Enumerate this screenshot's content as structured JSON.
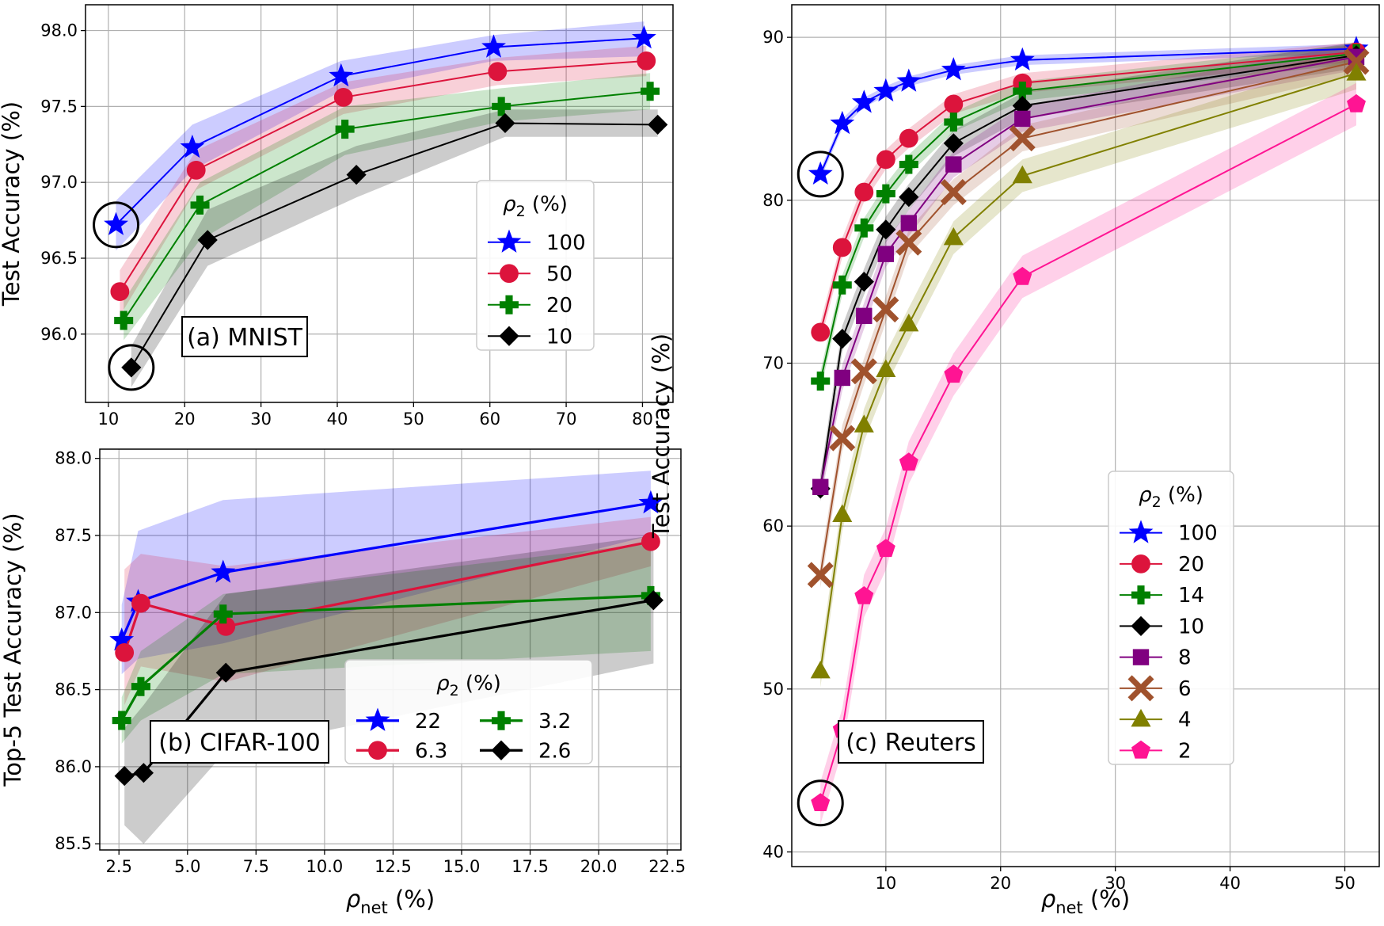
{
  "chart_data": [
    {
      "type": "line",
      "panel": "a",
      "annotation": "(a) MNIST",
      "xlabel": "ρnet (%)",
      "ylabel": "Test Accuracy (%)",
      "xlim": [
        7,
        84
      ],
      "ylim": [
        95.55,
        98.17
      ],
      "xticks": [
        10,
        20,
        30,
        40,
        50,
        60,
        70,
        80
      ],
      "yticks": [
        96.0,
        96.5,
        97.0,
        97.5,
        98.0
      ],
      "ytick_decimals": 1,
      "grid": true,
      "legend_title": "ρ2 (%)",
      "legend_placement": "bottom-right",
      "legend_columns": 1,
      "series": [
        {
          "name": "100",
          "color": "#0000ff",
          "marker": "star",
          "x": [
            11,
            21,
            40.5,
            60.5,
            80.2
          ],
          "y": [
            96.72,
            97.23,
            97.7,
            97.89,
            97.95
          ],
          "lower": [
            96.55,
            97.08,
            97.6,
            97.8,
            97.83
          ],
          "upper": [
            96.88,
            97.38,
            97.8,
            97.97,
            98.06
          ]
        },
        {
          "name": "50",
          "color": "#dc143c",
          "marker": "circle",
          "x": [
            11.5,
            21.5,
            40.8,
            61,
            80.5
          ],
          "y": [
            96.28,
            97.08,
            97.56,
            97.73,
            97.8
          ],
          "lower": [
            96.12,
            96.95,
            97.45,
            97.64,
            97.7
          ],
          "upper": [
            96.42,
            97.21,
            97.66,
            97.82,
            97.9
          ]
        },
        {
          "name": "20",
          "color": "#008000",
          "marker": "plus",
          "x": [
            12,
            22,
            41,
            61.5,
            81
          ],
          "y": [
            96.09,
            96.85,
            97.35,
            97.5,
            97.6
          ],
          "lower": [
            95.96,
            96.62,
            97.18,
            97.4,
            97.48
          ],
          "upper": [
            96.22,
            97.0,
            97.5,
            97.62,
            97.72
          ]
        },
        {
          "name": "10",
          "color": "#000000",
          "marker": "diamond",
          "x": [
            13,
            23,
            42.5,
            62,
            82
          ],
          "y": [
            95.78,
            96.62,
            97.05,
            97.39,
            97.38
          ],
          "lower": [
            95.65,
            96.45,
            96.9,
            97.3,
            97.3
          ],
          "upper": [
            95.92,
            96.82,
            97.24,
            97.48,
            97.48
          ]
        }
      ],
      "highlight_circles": [
        {
          "series": "100",
          "x": 11,
          "y": 96.72
        },
        {
          "series": "10",
          "x": 13,
          "y": 95.78
        }
      ]
    },
    {
      "type": "line",
      "panel": "b",
      "annotation": "(b) CIFAR-100",
      "xlabel": "ρnet (%)",
      "ylabel": "Top-5 Test Accuracy (%)",
      "xlim": [
        1.8,
        23.0
      ],
      "ylim": [
        85.46,
        88.06
      ],
      "xticks": [
        2.5,
        5.0,
        7.5,
        10.0,
        12.5,
        15.0,
        17.5,
        20.0,
        22.5
      ],
      "yticks": [
        85.5,
        86.0,
        86.5,
        87.0,
        87.5,
        88.0
      ],
      "ytick_decimals": 1,
      "grid": true,
      "legend_title": "ρ2 (%)",
      "legend_placement": "bottom-right",
      "legend_columns": 2,
      "series": [
        {
          "name": "22",
          "color": "#0000ff",
          "marker": "star",
          "x": [
            2.6,
            3.2,
            6.3,
            21.9
          ],
          "y": [
            86.82,
            87.07,
            87.26,
            87.71
          ],
          "lower": [
            86.6,
            86.7,
            86.8,
            87.5
          ],
          "upper": [
            87.05,
            87.53,
            87.73,
            87.92
          ]
        },
        {
          "name": "6.3",
          "color": "#dc143c",
          "marker": "circle",
          "x": [
            2.7,
            3.3,
            6.4,
            21.9
          ],
          "y": [
            86.74,
            87.06,
            86.91,
            87.46
          ],
          "lower": [
            86.4,
            86.65,
            86.55,
            87.3
          ],
          "upper": [
            87.28,
            87.38,
            87.3,
            87.62
          ]
        },
        {
          "name": "3.2",
          "color": "#008000",
          "marker": "plus",
          "x": [
            2.6,
            3.3,
            6.3,
            21.9
          ],
          "y": [
            86.3,
            86.52,
            86.99,
            87.11
          ],
          "lower": [
            86.15,
            86.3,
            86.6,
            86.75
          ],
          "upper": [
            86.45,
            86.75,
            87.12,
            87.45
          ]
        },
        {
          "name": "2.6",
          "color": "#000000",
          "marker": "diamond",
          "x": [
            2.7,
            3.4,
            6.4,
            22.0
          ],
          "y": [
            85.94,
            85.96,
            86.61,
            87.08
          ],
          "lower": [
            85.62,
            85.5,
            86.1,
            86.67
          ],
          "upper": [
            86.25,
            86.4,
            87.12,
            87.5
          ]
        }
      ]
    },
    {
      "type": "line",
      "panel": "c",
      "annotation": "(c) Reuters",
      "xlabel": "ρnet (%)",
      "ylabel": "Test Accuracy (%)",
      "xlim": [
        1.8,
        53.0
      ],
      "ylim": [
        39.1,
        92.0
      ],
      "xticks": [
        10,
        20,
        30,
        40,
        50
      ],
      "yticks": [
        40,
        50,
        60,
        70,
        80,
        90
      ],
      "ytick_decimals": 0,
      "grid": true,
      "legend_title": "ρ2 (%)",
      "legend_placement": "bottom-right",
      "legend_columns": 1,
      "series": [
        {
          "name": "100",
          "color": "#0000ff",
          "marker": "star",
          "x": [
            4.3,
            6.2,
            8.1,
            10.0,
            12.0,
            15.9,
            21.9,
            51.0
          ],
          "y": [
            81.6,
            84.7,
            86.0,
            86.7,
            87.3,
            88.0,
            88.6,
            89.3
          ],
          "band": 0.3
        },
        {
          "name": "20",
          "color": "#dc143c",
          "marker": "circle",
          "x": [
            4.3,
            6.2,
            8.1,
            10.0,
            12.0,
            15.9,
            21.9,
            51.0
          ],
          "y": [
            71.9,
            77.1,
            80.5,
            82.5,
            83.8,
            85.9,
            87.2,
            89.1
          ],
          "band": 0.6
        },
        {
          "name": "14",
          "color": "#008000",
          "marker": "plus",
          "x": [
            4.3,
            6.2,
            8.1,
            10.0,
            12.0,
            15.9,
            21.9,
            51.0
          ],
          "y": [
            68.9,
            74.8,
            78.3,
            80.4,
            82.2,
            84.8,
            86.7,
            89.0
          ],
          "band": 0.6
        },
        {
          "name": "10",
          "color": "#000000",
          "marker": "diamond",
          "x": [
            4.3,
            6.2,
            8.1,
            10.0,
            12.0,
            15.9,
            21.9,
            51.0
          ],
          "y": [
            62.3,
            71.5,
            75.0,
            78.2,
            80.2,
            83.5,
            85.8,
            88.9
          ],
          "band": 0.8
        },
        {
          "name": "8",
          "color": "#800080",
          "marker": "square",
          "x": [
            4.3,
            6.2,
            8.1,
            10.0,
            12.0,
            15.9,
            21.9,
            51.0
          ],
          "y": [
            62.4,
            69.1,
            72.9,
            76.7,
            78.6,
            82.2,
            85.0,
            88.8
          ],
          "band": 0.8
        },
        {
          "name": "6",
          "color": "#a0522d",
          "marker": "x",
          "x": [
            4.3,
            6.2,
            8.1,
            10.0,
            12.0,
            15.9,
            21.9,
            51.0
          ],
          "y": [
            57.0,
            65.4,
            69.5,
            73.3,
            77.4,
            80.5,
            83.8,
            88.5
          ],
          "band": 0.8
        },
        {
          "name": "4",
          "color": "#808000",
          "marker": "triangle",
          "x": [
            4.3,
            6.2,
            8.1,
            10.0,
            12.0,
            15.9,
            21.9,
            51.0
          ],
          "y": [
            51.1,
            60.7,
            66.2,
            69.6,
            72.4,
            77.7,
            81.5,
            87.8
          ],
          "band": 1.0
        },
        {
          "name": "2",
          "color": "#ff1493",
          "marker": "pentagon",
          "x": [
            4.3,
            6.2,
            8.1,
            10.0,
            12.0,
            15.9,
            21.9,
            51.0
          ],
          "y": [
            43.0,
            47.5,
            55.7,
            58.6,
            63.9,
            69.3,
            75.3,
            85.9
          ],
          "band": 1.3
        }
      ],
      "highlight_circles": [
        {
          "series": "100",
          "x": 4.3,
          "y": 81.6
        },
        {
          "series": "2",
          "x": 4.3,
          "y": 43.0
        }
      ]
    }
  ]
}
